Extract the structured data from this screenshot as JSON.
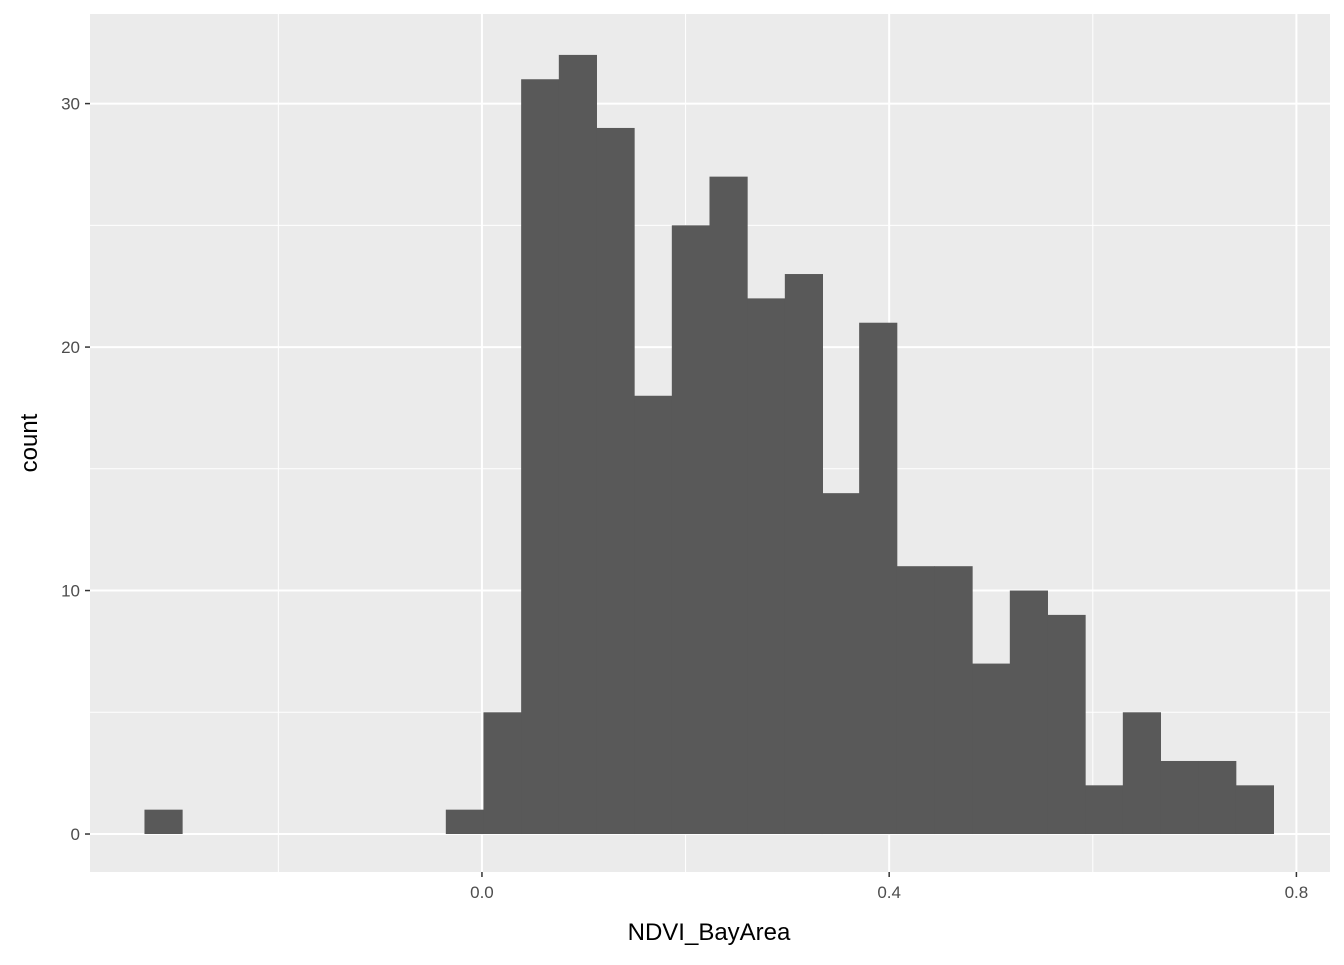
{
  "chart_data": {
    "type": "bar",
    "subtype": "histogram",
    "title": "",
    "xlabel": "NDVI_BayArea",
    "ylabel": "count",
    "bin_width": 0.037,
    "x": [
      -0.313,
      -0.276,
      -0.239,
      -0.202,
      -0.165,
      -0.128,
      -0.091,
      -0.054,
      -0.017,
      0.02,
      0.057,
      0.094,
      0.131,
      0.168,
      0.205,
      0.242,
      0.279,
      0.316,
      0.352,
      0.389,
      0.426,
      0.463,
      0.5,
      0.537,
      0.574,
      0.611,
      0.648,
      0.685,
      0.722,
      0.759
    ],
    "values": [
      1,
      0,
      0,
      0,
      0,
      0,
      0,
      0,
      1,
      5,
      31,
      32,
      29,
      18,
      25,
      27,
      22,
      23,
      14,
      21,
      11,
      11,
      7,
      10,
      9,
      2,
      5,
      3,
      3,
      2
    ],
    "xlim": [
      -0.385,
      0.833
    ],
    "ylim": [
      -1.56,
      33.68
    ],
    "x_ticks": [
      0.0,
      0.4,
      0.8
    ],
    "x_tick_labels": [
      "0.0",
      "0.4",
      "0.8"
    ],
    "x_minor": [
      -0.2,
      0.2,
      0.6
    ],
    "y_ticks": [
      0,
      10,
      20,
      30
    ],
    "y_tick_labels": [
      "0",
      "10",
      "20",
      "30"
    ],
    "y_minor": [
      5,
      15,
      25
    ],
    "grid": true,
    "colors": {
      "panel": "#EBEBEB",
      "bar": "#595959",
      "grid": "#FFFFFF",
      "tick_text": "#4D4D4D"
    }
  }
}
